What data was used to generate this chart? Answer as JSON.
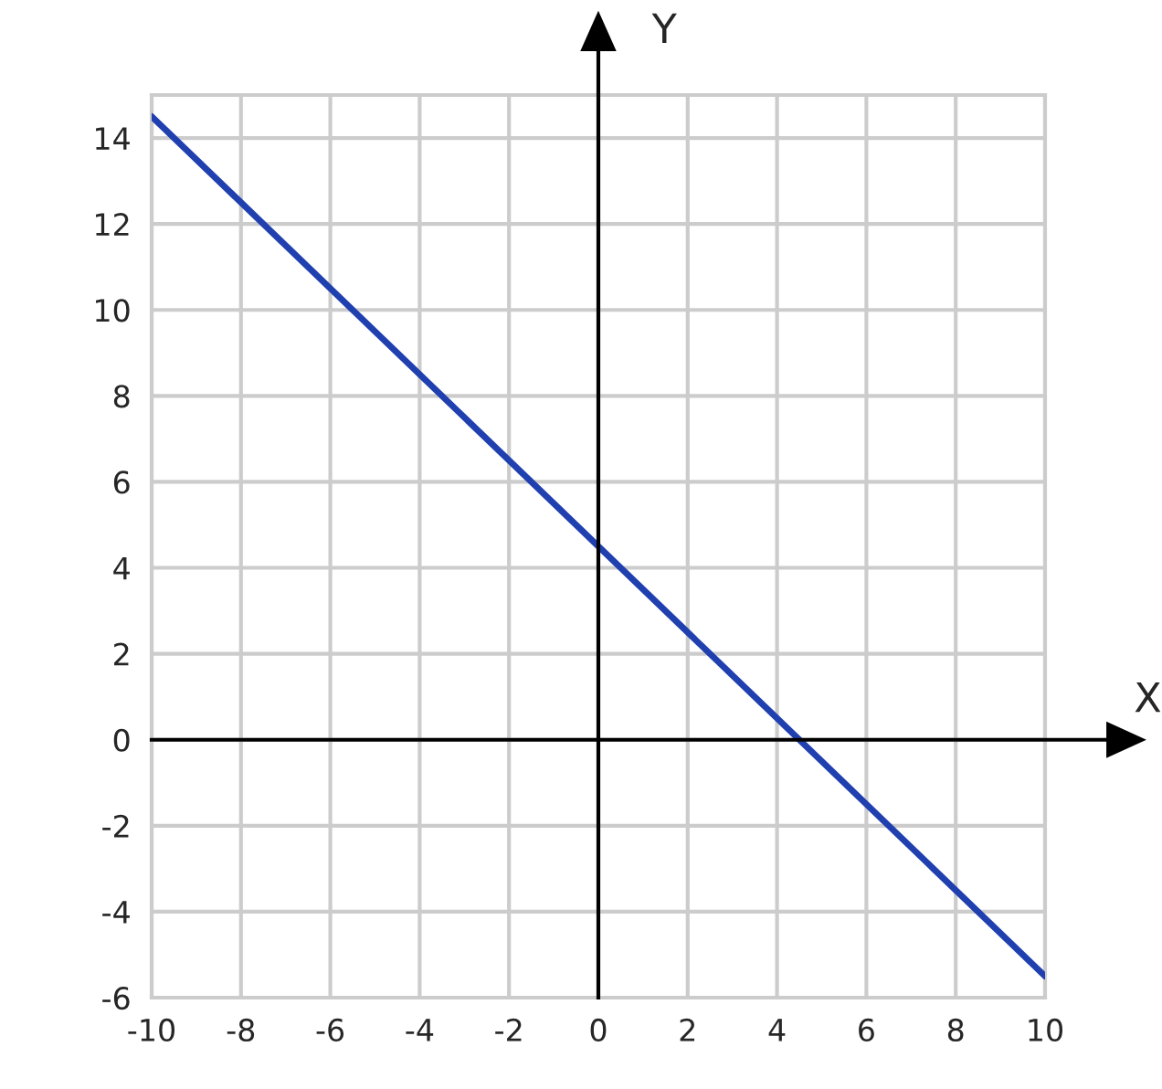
{
  "chart_data": {
    "type": "line",
    "xlabel": "X",
    "ylabel": "Y",
    "x": [
      -10,
      10
    ],
    "series": [
      {
        "color": "#2040b0",
        "values": [
          14.5,
          -5.5
        ]
      }
    ],
    "xlim": [
      -10,
      10
    ],
    "ylim": [
      -6,
      15
    ],
    "xticks": [
      -10,
      -8,
      -6,
      -4,
      -2,
      0,
      2,
      4,
      6,
      8,
      10
    ],
    "yticks": [
      -6,
      -4,
      -2,
      0,
      2,
      4,
      6,
      8,
      10,
      12,
      14
    ],
    "grid": true,
    "line_style": "solid",
    "marker": "none"
  }
}
